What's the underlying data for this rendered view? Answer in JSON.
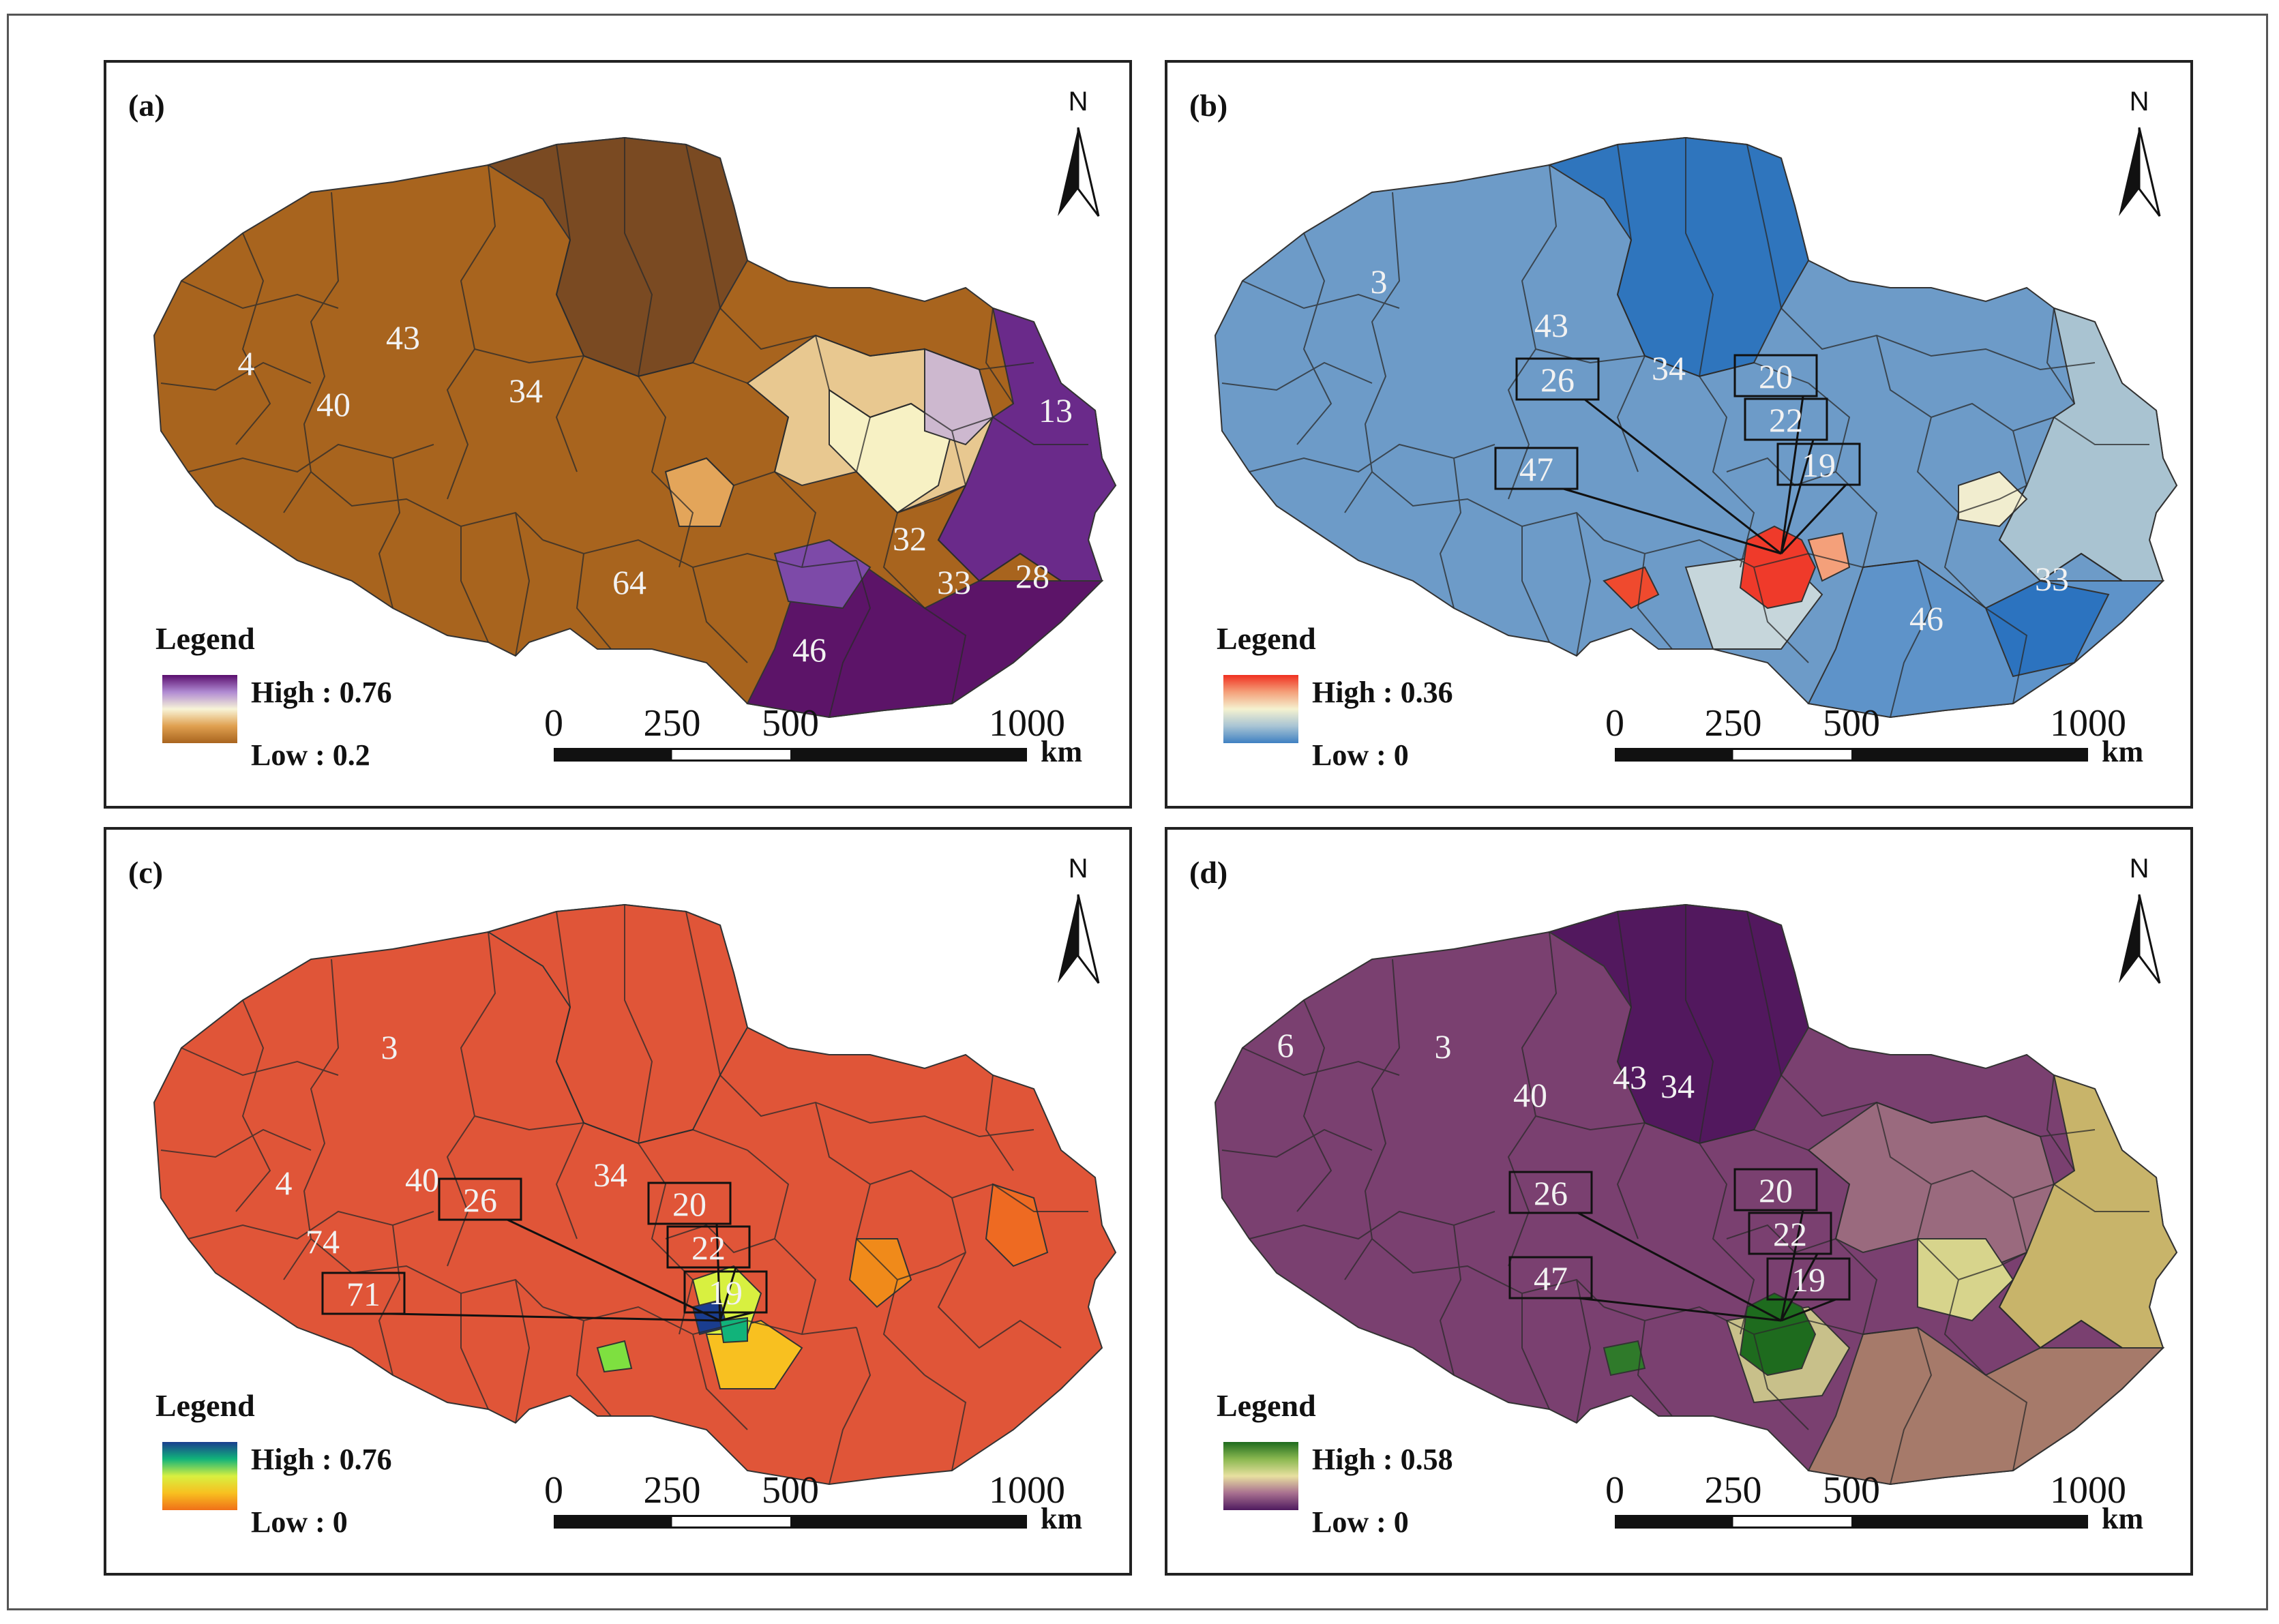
{
  "panels": [
    {
      "id": "a",
      "label": "(a)",
      "map_fill": "#a8641e",
      "map_fill_north": "#7a4a22",
      "legend": {
        "title": "Legend",
        "high": "High : 0.76",
        "low": "Low : 0.2",
        "ramp": [
          "#5a0e6e",
          "#b08ad2",
          "#f8f4d8",
          "#e0a050",
          "#a8641e"
        ]
      },
      "county_labels": [
        "4",
        "40",
        "43",
        "34",
        "13",
        "32",
        "33",
        "28",
        "46",
        "64"
      ],
      "boxed_labels": []
    },
    {
      "id": "b",
      "label": "(b)",
      "map_fill": "#6d9bc8",
      "map_fill_north": "#2f75bd",
      "legend": {
        "title": "Legend",
        "high": "High : 0.36",
        "low": "Low : 0",
        "ramp": [
          "#f03020",
          "#f4a07a",
          "#f5f2d0",
          "#a8c4d4",
          "#3f80c2"
        ]
      },
      "county_labels": [
        "3",
        "43",
        "34",
        "33",
        "46"
      ],
      "boxed_labels": [
        "26",
        "20",
        "22",
        "19",
        "47"
      ]
    },
    {
      "id": "c",
      "label": "(c)",
      "map_fill": "#e05538",
      "map_fill_north": "#e05538",
      "legend": {
        "title": "Legend",
        "high": "High : 0.76",
        "low": "Low : 0",
        "ramp": [
          "#1a3d8f",
          "#11b37a",
          "#d8f040",
          "#f8c020",
          "#f07018"
        ]
      },
      "county_labels": [
        "3",
        "4",
        "40",
        "34",
        "74"
      ],
      "boxed_labels": [
        "26",
        "20",
        "22",
        "19",
        "71"
      ]
    },
    {
      "id": "d",
      "label": "(d)",
      "map_fill": "#7a4070",
      "map_fill_north": "#52185e",
      "legend": {
        "title": "Legend",
        "high": "High : 0.58",
        "low": "Low : 0",
        "ramp": [
          "#1e6b1e",
          "#8ab850",
          "#e8e0a0",
          "#a87090",
          "#4e1a5e"
        ]
      },
      "county_labels": [
        "6",
        "3",
        "43",
        "40",
        "34"
      ],
      "boxed_labels": [
        "26",
        "20",
        "22",
        "19",
        "47"
      ]
    }
  ],
  "scalebar": {
    "ticks": [
      "0",
      "250",
      "500",
      "1000"
    ],
    "unit": "km"
  },
  "north_arrow": {
    "letter": "N"
  }
}
